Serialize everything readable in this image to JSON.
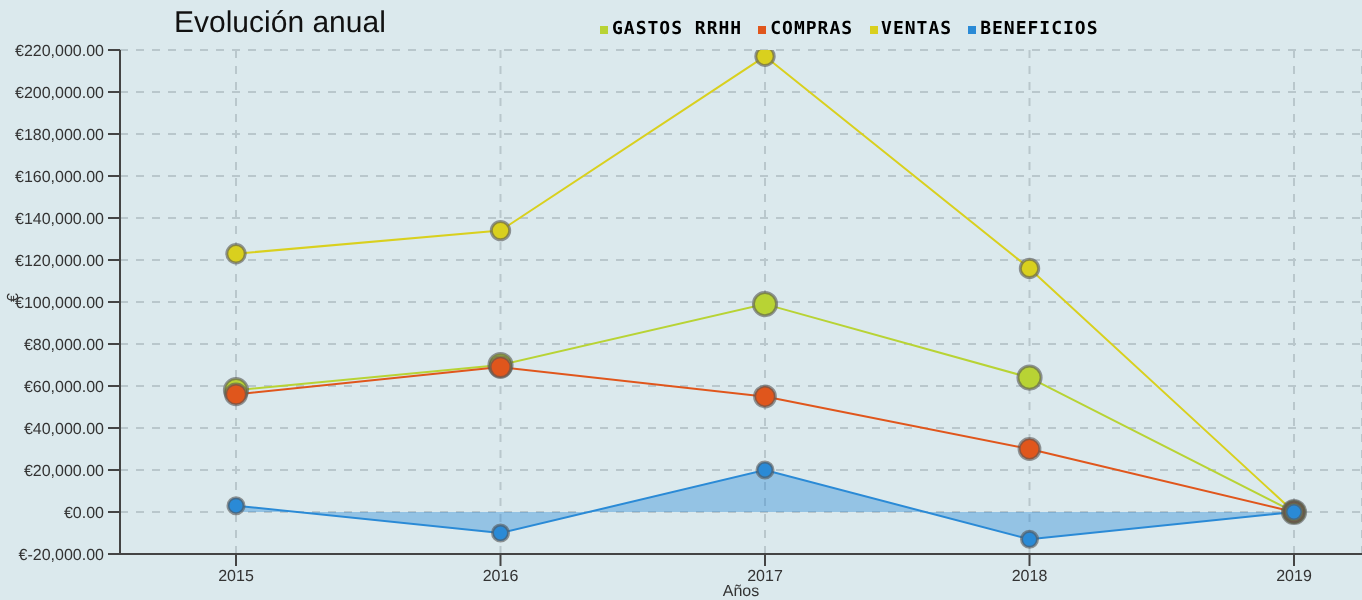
{
  "chart_data": {
    "type": "line",
    "title": "Evolución anual",
    "xlabel": "Años",
    "ylabel": "€",
    "categories": [
      "2015",
      "2016",
      "2017",
      "2018",
      "2019"
    ],
    "series": [
      {
        "name": "GASTOS RRHH",
        "color": "#b8d334",
        "values": [
          58000,
          70000,
          99000,
          64000,
          0
        ]
      },
      {
        "name": "COMPRAS",
        "color": "#e0561c",
        "values": [
          56000,
          69000,
          55000,
          30000,
          0
        ]
      },
      {
        "name": "VENTAS",
        "color": "#d9d01e",
        "values": [
          123000,
          134000,
          217000,
          116000,
          0
        ]
      },
      {
        "name": "BENEFICIOS",
        "type": "area",
        "color": "#2a8ad6",
        "values": [
          3000,
          -10000,
          20000,
          -13000,
          0
        ]
      }
    ],
    "ylim": [
      -20000,
      220000
    ],
    "yticks": [
      {
        "value": -20000,
        "label": "€-20,000.00"
      },
      {
        "value": 0,
        "label": "€0.00"
      },
      {
        "value": 20000,
        "label": "€20,000.00"
      },
      {
        "value": 40000,
        "label": "€40,000.00"
      },
      {
        "value": 60000,
        "label": "€60,000.00"
      },
      {
        "value": 80000,
        "label": "€80,000.00"
      },
      {
        "value": 100000,
        "label": "€100,000.00"
      },
      {
        "value": 120000,
        "label": "€120,000.00"
      },
      {
        "value": 140000,
        "label": "€140,000.00"
      },
      {
        "value": 160000,
        "label": "€160,000.00"
      },
      {
        "value": 180000,
        "label": "€180,000.00"
      },
      {
        "value": 200000,
        "label": "€200,000.00"
      },
      {
        "value": 220000,
        "label": "€220,000.00"
      }
    ],
    "grid": true,
    "legend": "top",
    "marker": "circle",
    "line_style": "solid"
  }
}
